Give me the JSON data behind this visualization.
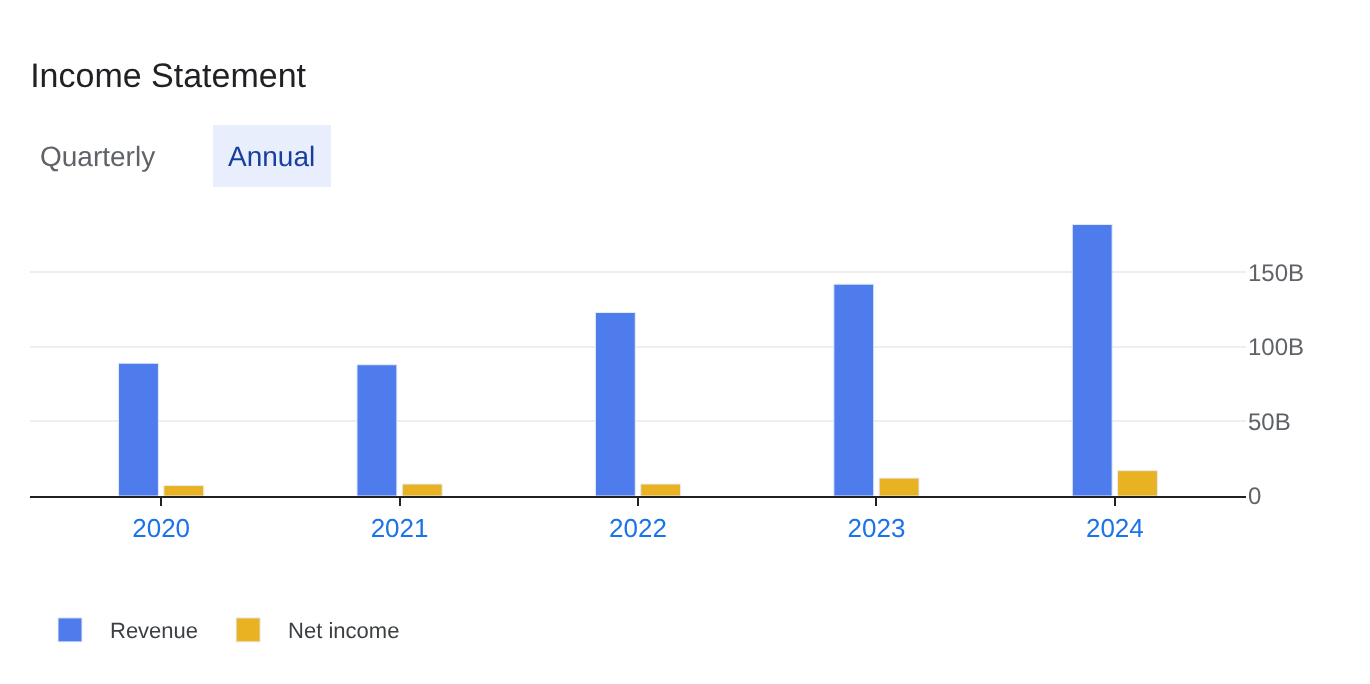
{
  "chart_data": {
    "type": "bar",
    "title": "Income Statement",
    "annotations": [
      "Quarterly",
      "Annual"
    ],
    "categories": [
      "2020",
      "2021",
      "2022",
      "2023",
      "2024"
    ],
    "series": [
      {
        "name": "Revenue",
        "color": "#4e7cec",
        "values": [
          89,
          88,
          123,
          142,
          182
        ]
      },
      {
        "name": "Net income",
        "color": "#e8b222",
        "values": [
          7,
          8,
          8,
          12,
          17
        ]
      }
    ],
    "ylim": [
      0,
      185
    ],
    "yticks": [
      {
        "value": 0,
        "label": "0"
      },
      {
        "value": 50,
        "label": "50B"
      },
      {
        "value": 100,
        "label": "100B"
      },
      {
        "value": 150,
        "label": "150B"
      }
    ],
    "grid": "y",
    "legend": "bottom left"
  }
}
